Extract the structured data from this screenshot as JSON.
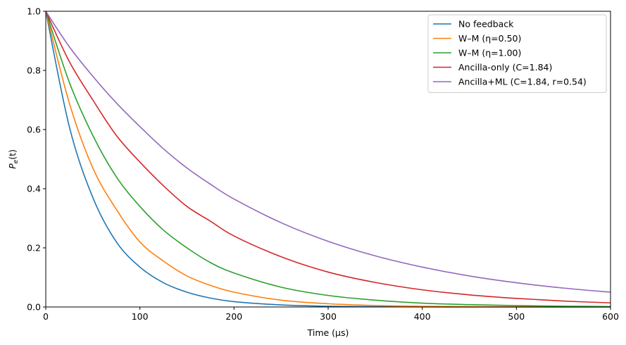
{
  "chart_data": {
    "type": "line",
    "xlabel": "Time (µs)",
    "ylabel_main": "P",
    "ylabel_sub": "e",
    "ylabel_arg": "(t)",
    "xlim": [
      0,
      600
    ],
    "ylim": [
      0,
      1.0
    ],
    "x_ticks": [
      0,
      100,
      200,
      300,
      400,
      500,
      600
    ],
    "x_tick_labels": [
      "0",
      "100",
      "200",
      "300",
      "400",
      "500",
      "600"
    ],
    "y_ticks": [
      0,
      0.2,
      0.4,
      0.6,
      0.8,
      1.0
    ],
    "y_tick_labels": [
      "0.0",
      "0.2",
      "0.4",
      "0.6",
      "0.8",
      "1.0"
    ],
    "grid": false,
    "legend_position": "top-right",
    "x": [
      0,
      25,
      50,
      75,
      100,
      125,
      150,
      175,
      200,
      250,
      300,
      350,
      400,
      450,
      500,
      550,
      600
    ],
    "series": [
      {
        "name": "No feedback",
        "color": "#1f77b4",
        "values": [
          1.0,
          0.61,
          0.37,
          0.22,
          0.135,
          0.082,
          0.05,
          0.03,
          0.018,
          0.007,
          0.0025,
          0.0009,
          0.0003,
          0.0001,
          5e-05,
          2e-05,
          1e-05
        ]
      },
      {
        "name": "W–M (η=0.50)",
        "color": "#ff7f0e",
        "values": [
          1.0,
          0.69,
          0.47,
          0.33,
          0.22,
          0.155,
          0.105,
          0.073,
          0.05,
          0.023,
          0.011,
          0.005,
          0.0024,
          0.0011,
          0.0005,
          0.00025,
          0.00012
        ]
      },
      {
        "name": "W–M (η=1.00)",
        "color": "#2ca02c",
        "values": [
          1.0,
          0.76,
          0.58,
          0.44,
          0.34,
          0.26,
          0.2,
          0.15,
          0.115,
          0.067,
          0.039,
          0.023,
          0.013,
          0.0078,
          0.0045,
          0.0026,
          0.0015
        ]
      },
      {
        "name": "Ancilla-only (C=1.84)",
        "color": "#d62728",
        "values": [
          1.0,
          0.83,
          0.7,
          0.58,
          0.49,
          0.41,
          0.34,
          0.29,
          0.24,
          0.17,
          0.118,
          0.083,
          0.058,
          0.041,
          0.029,
          0.02,
          0.014
        ]
      },
      {
        "name": "Ancilla+ML (C=1.84, r=0.54)",
        "color": "#9467bd",
        "values": [
          1.0,
          0.88,
          0.78,
          0.69,
          0.61,
          0.535,
          0.47,
          0.415,
          0.365,
          0.285,
          0.222,
          0.173,
          0.135,
          0.105,
          0.082,
          0.064,
          0.05
        ]
      }
    ]
  }
}
